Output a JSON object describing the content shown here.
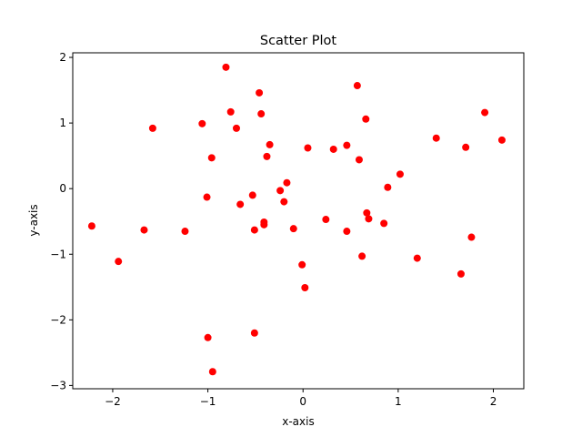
{
  "chart_data": {
    "type": "scatter",
    "title": "Scatter Plot",
    "xlabel": "x-axis",
    "ylabel": "y-axis",
    "xlim": [
      -2.42,
      2.32
    ],
    "ylim": [
      -3.05,
      2.07
    ],
    "xticks": [
      -2,
      -1,
      0,
      1,
      2
    ],
    "yticks": [
      -3,
      -2,
      -1,
      0,
      1,
      2
    ],
    "xtick_labels": [
      "−2",
      "−1",
      "0",
      "1",
      "2"
    ],
    "ytick_labels": [
      "−3",
      "−2",
      "−1",
      "0",
      "1",
      "2"
    ],
    "grid": false,
    "marker_color": "#ff0000",
    "series": [
      {
        "x": [
          -2.22,
          -1.94,
          -1.67,
          -1.58,
          -1.24,
          -1.06,
          -1.01,
          -0.96,
          -1.0,
          -0.95,
          -0.81,
          -0.76,
          -0.7,
          -0.66,
          -0.53,
          -0.51,
          -0.51,
          -0.46,
          -0.44,
          -0.41,
          -0.41,
          -0.38,
          -0.35,
          -0.24,
          -0.2,
          -0.17,
          -0.1,
          -0.01,
          0.02,
          0.05,
          0.24,
          0.32,
          0.46,
          0.46,
          0.57,
          0.59,
          0.62,
          0.66,
          0.67,
          0.69,
          0.85,
          0.89,
          1.02,
          1.2,
          1.4,
          1.66,
          1.71,
          1.77,
          1.91,
          2.09
        ],
        "y": [
          -0.57,
          -1.11,
          -0.63,
          0.92,
          -0.65,
          0.99,
          -0.13,
          0.47,
          -2.27,
          -2.79,
          1.85,
          1.17,
          0.92,
          -0.24,
          -0.1,
          -2.2,
          -0.63,
          1.46,
          1.14,
          -0.51,
          -0.55,
          0.49,
          0.67,
          -0.03,
          -0.2,
          0.09,
          -0.61,
          -1.16,
          -1.51,
          0.62,
          -0.47,
          0.6,
          -0.65,
          0.66,
          1.57,
          0.44,
          -1.03,
          1.06,
          -0.37,
          -0.46,
          -0.53,
          0.02,
          0.22,
          -1.06,
          0.77,
          -1.3,
          0.63,
          -0.74,
          1.16,
          0.74
        ]
      }
    ]
  }
}
